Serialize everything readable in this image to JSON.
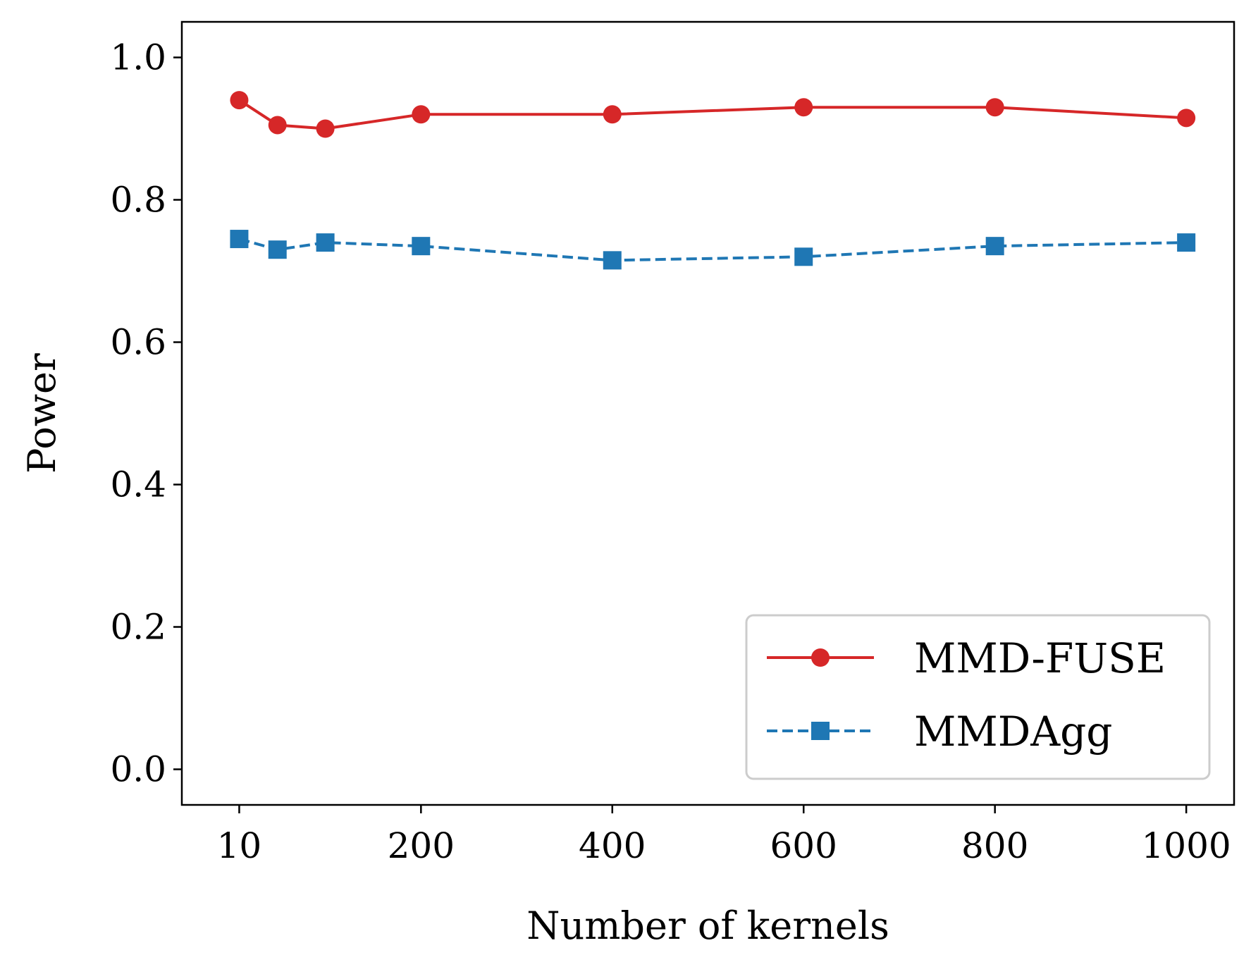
{
  "chart_data": {
    "type": "line",
    "xlabel": "Number of kernels",
    "ylabel": "Power",
    "xlim": [
      -50,
      1050
    ],
    "ylim": [
      -0.05,
      1.05
    ],
    "x_ticks": [
      10,
      200,
      400,
      600,
      800,
      1000
    ],
    "x_tick_labels": [
      "10",
      "200",
      "400",
      "600",
      "800",
      "1000"
    ],
    "y_ticks": [
      0.0,
      0.2,
      0.4,
      0.6,
      0.8,
      1.0
    ],
    "y_tick_labels": [
      "0.0",
      "0.2",
      "0.4",
      "0.6",
      "0.8",
      "1.0"
    ],
    "grid": false,
    "legend_position": "lower-right",
    "series": [
      {
        "name": "MMD-FUSE",
        "color": "#d62728",
        "line_style": "solid",
        "marker": "circle",
        "x": [
          10,
          50,
          100,
          200,
          400,
          600,
          800,
          1000
        ],
        "y": [
          0.94,
          0.905,
          0.9,
          0.92,
          0.92,
          0.93,
          0.93,
          0.915
        ]
      },
      {
        "name": "MMDAgg",
        "color": "#1f77b4",
        "line_style": "dashed",
        "marker": "square",
        "x": [
          10,
          50,
          100,
          200,
          400,
          600,
          800,
          1000
        ],
        "y": [
          0.745,
          0.73,
          0.74,
          0.735,
          0.715,
          0.72,
          0.735,
          0.74
        ]
      }
    ]
  }
}
